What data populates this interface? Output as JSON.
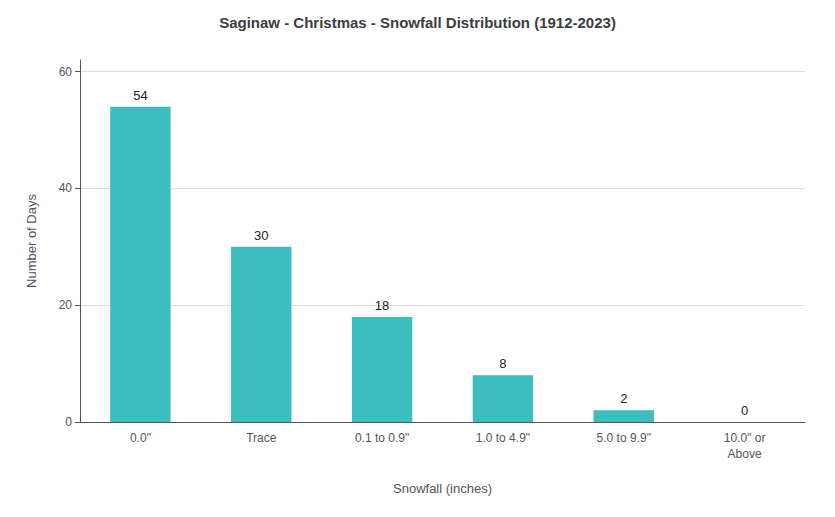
{
  "chart_data": {
    "type": "bar",
    "title": "Saginaw - Christmas - Snowfall Distribution (1912-2023)",
    "categories": [
      "0.0\"",
      "Trace",
      "0.1 to 0.9\"",
      "1.0 to 4.9\"",
      "5.0 to 9.9\"",
      "10.0\" or\nAbove"
    ],
    "values": [
      54,
      30,
      18,
      8,
      2,
      0
    ],
    "color": "#3dbdbd",
    "xlabel": "Snowfall (inches)",
    "ylabel": "Number of Days",
    "ylim": [
      0,
      62
    ],
    "yticks": [
      0,
      20,
      40,
      60
    ],
    "grid": true,
    "data_labels": true
  }
}
